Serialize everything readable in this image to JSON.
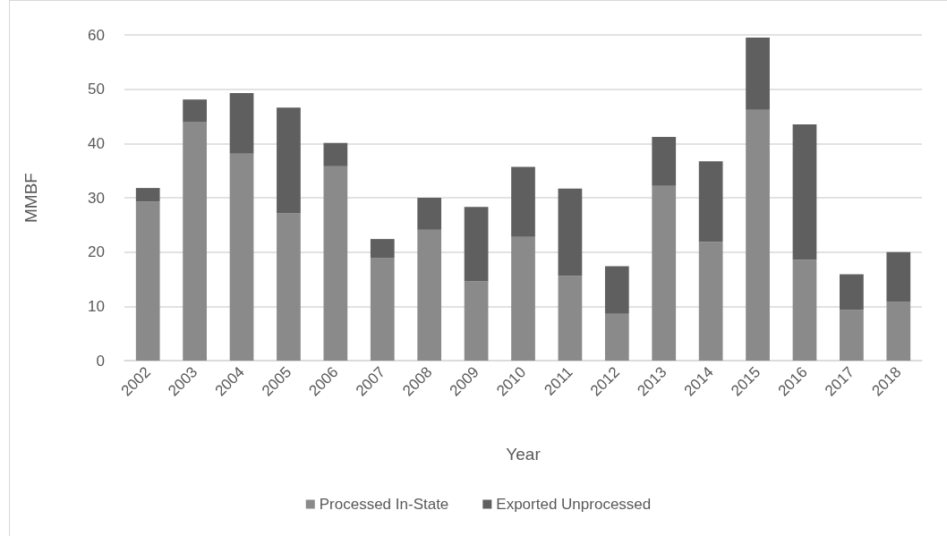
{
  "chart_data": {
    "type": "bar",
    "stacked": true,
    "xlabel": "Year",
    "ylabel": "MMBF",
    "categories": [
      "2002",
      "2003",
      "2004",
      "2005",
      "2006",
      "2007",
      "2008",
      "2009",
      "2010",
      "2011",
      "2012",
      "2013",
      "2014",
      "2015",
      "2016",
      "2017",
      "2018"
    ],
    "series": [
      {
        "name": "Processed In-State",
        "color": "#8a8a8a",
        "values": [
          29.3,
          43.9,
          38.1,
          27.1,
          35.8,
          18.9,
          24.1,
          14.6,
          22.8,
          15.6,
          8.6,
          32.2,
          21.9,
          46.2,
          18.6,
          9.3,
          10.8
        ]
      },
      {
        "name": "Exported Unprocessed",
        "color": "#5f5f5f",
        "values": [
          2.5,
          4.2,
          11.2,
          19.5,
          4.3,
          3.5,
          5.9,
          13.7,
          12.9,
          16.1,
          8.8,
          9.0,
          14.8,
          13.3,
          24.9,
          6.6,
          9.2
        ]
      }
    ],
    "ylim": [
      0,
      60
    ],
    "yticks": [
      0,
      10,
      20,
      30,
      40,
      50,
      60
    ],
    "grid": "y",
    "legend": "bottom"
  }
}
